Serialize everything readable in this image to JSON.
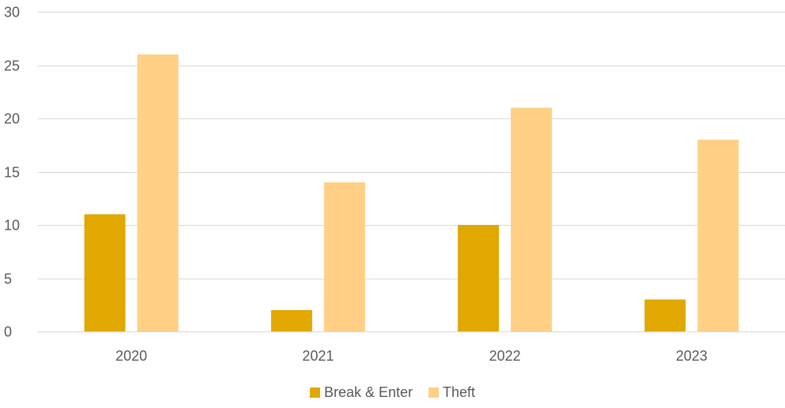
{
  "chart_data": {
    "type": "bar",
    "title": "",
    "xlabel": "",
    "ylabel": "",
    "categories": [
      "2020",
      "2021",
      "2022",
      "2023"
    ],
    "series": [
      {
        "name": "Break & Enter",
        "color": "#E0A800",
        "values": [
          11,
          2,
          10,
          3
        ]
      },
      {
        "name": "Theft",
        "color": "#FFD085",
        "values": [
          26,
          14,
          21,
          18
        ]
      }
    ],
    "ylim": [
      0,
      30
    ],
    "yticks": [
      0,
      5,
      10,
      15,
      20,
      25,
      30
    ],
    "grid": true,
    "legend_position": "bottom"
  }
}
